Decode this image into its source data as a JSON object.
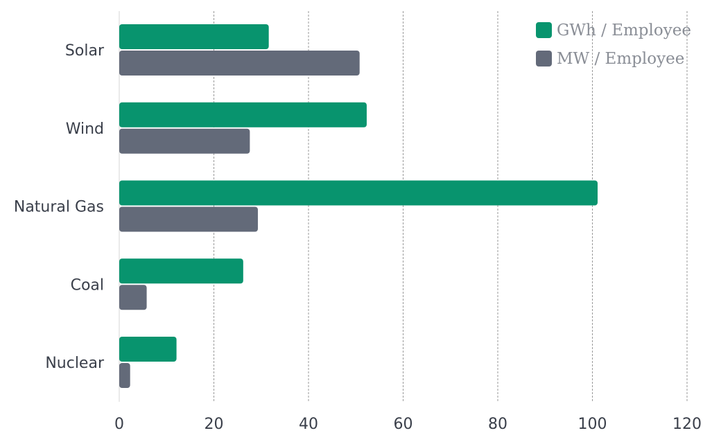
{
  "chart_data": {
    "type": "bar",
    "orientation": "horizontal",
    "categories": [
      "Solar",
      "Wind",
      "Natural Gas",
      "Coal",
      "Nuclear"
    ],
    "series": [
      {
        "name": "GWh / Employee",
        "color": "#08946e",
        "values": [
          31.6,
          52.3,
          101.1,
          26.2,
          12.1
        ]
      },
      {
        "name": "MW / Employee",
        "color": "#636a79",
        "values": [
          50.8,
          27.6,
          29.3,
          5.8,
          2.3
        ]
      }
    ],
    "xlim": [
      0,
      120
    ],
    "xticks": [
      0,
      20,
      40,
      60,
      80,
      100,
      120
    ],
    "grid": "vertical-dashed",
    "legend_position": "top-right",
    "title": "",
    "xlabel": "",
    "ylabel": ""
  }
}
